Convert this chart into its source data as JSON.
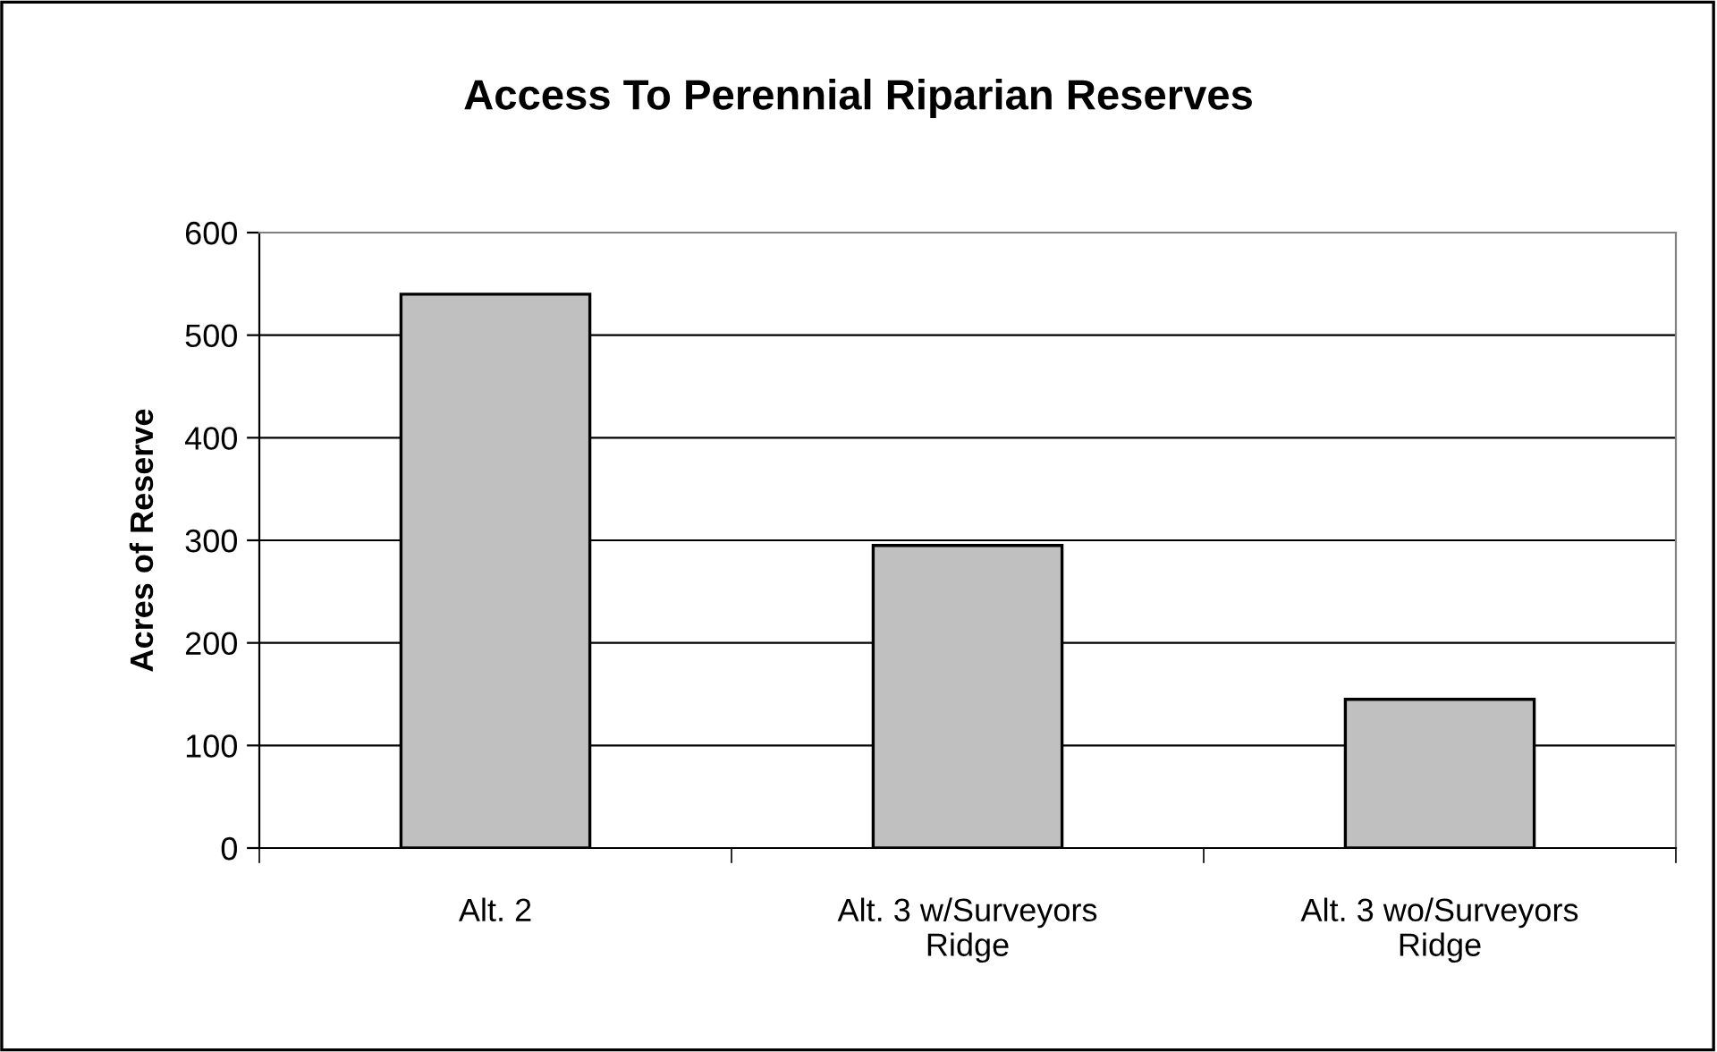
{
  "chart_data": {
    "type": "bar",
    "title": "Access To Perennial Riparian Reserves",
    "ylabel": "Acres of Reserve",
    "categories": [
      "Alt. 2",
      "Alt. 3 w/Surveyors\nRidge",
      "Alt. 3 wo/Surveyors\nRidge"
    ],
    "values": [
      540,
      295,
      145
    ],
    "color": "#c0c0c0",
    "ylim": [
      0,
      600
    ],
    "yticks": [
      0,
      100,
      200,
      300,
      400,
      500,
      600
    ],
    "grid": "y"
  }
}
